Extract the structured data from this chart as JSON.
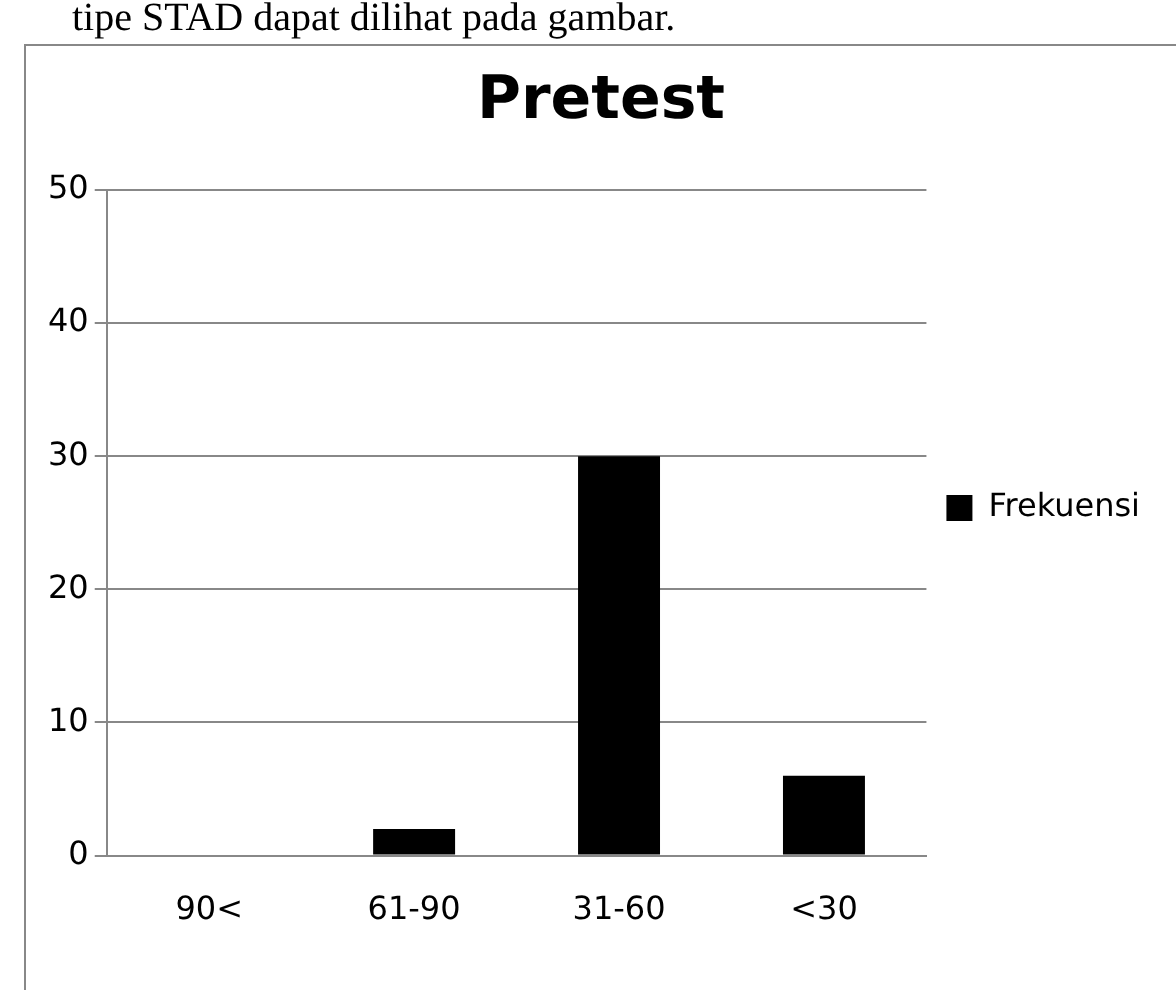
{
  "chart_data": {
    "type": "bar",
    "title": "Pretest",
    "annotations": [
      "tipe STAD dapat dilihat pada gambar."
    ],
    "categories": [
      "90<",
      "61-90",
      "31-60",
      "<30"
    ],
    "series": [
      {
        "name": "Frekuensi",
        "color": "#000000",
        "values": [
          0,
          2,
          30,
          6
        ]
      }
    ],
    "ylim": [
      0,
      50
    ],
    "yticks": [
      0,
      10,
      20,
      30,
      40,
      50
    ],
    "grid": "y",
    "legend": "right"
  }
}
